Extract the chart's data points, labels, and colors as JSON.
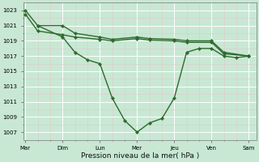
{
  "bg_color": "#c8e8d4",
  "grid_major_color": "#ffffff",
  "grid_minor_color": "#e0c8c8",
  "line_color": "#2d6a2d",
  "days": [
    "Mar",
    "Dim",
    "Lun",
    "Mer",
    "Jeu",
    "Ven",
    "Sam"
  ],
  "ylim": [
    1006.0,
    1024.0
  ],
  "yticks": [
    1007,
    1009,
    1011,
    1013,
    1015,
    1017,
    1019,
    1021,
    1023
  ],
  "xlabel": "Pression niveau de la mer( hPa )",
  "line1_x": [
    0.0,
    0.33,
    1.0,
    1.33,
    2.0,
    2.33,
    3.0,
    3.33,
    4.0,
    4.33,
    5.0,
    5.33,
    6.0
  ],
  "line1_y": [
    1023.0,
    1021.0,
    1021.0,
    1020.0,
    1019.5,
    1019.2,
    1019.5,
    1019.3,
    1019.2,
    1019.0,
    1019.0,
    1017.5,
    1017.0
  ],
  "line2_x": [
    0.0,
    0.33,
    1.0,
    1.33,
    2.0,
    2.33,
    3.0,
    3.33,
    4.0,
    4.33,
    5.0,
    5.33,
    6.0
  ],
  "line2_y": [
    1022.5,
    1020.3,
    1019.8,
    1019.5,
    1019.2,
    1019.0,
    1019.3,
    1019.1,
    1019.0,
    1018.8,
    1018.8,
    1017.3,
    1017.0
  ],
  "line3_x": [
    0.33,
    1.0,
    1.33,
    1.67,
    2.0,
    2.33,
    2.67,
    3.0,
    3.33,
    3.67,
    4.0,
    4.33,
    4.67,
    5.0,
    5.33,
    5.67,
    6.0
  ],
  "line3_y": [
    1021.0,
    1019.5,
    1017.5,
    1016.5,
    1016.0,
    1011.5,
    1008.5,
    1007.0,
    1008.2,
    1008.8,
    1011.5,
    1017.5,
    1018.0,
    1018.0,
    1017.0,
    1016.8,
    1017.0
  ],
  "tick_labelsize": 5.0,
  "xlabel_fontsize": 6.5,
  "linewidth": 1.0,
  "markersize": 2.2
}
